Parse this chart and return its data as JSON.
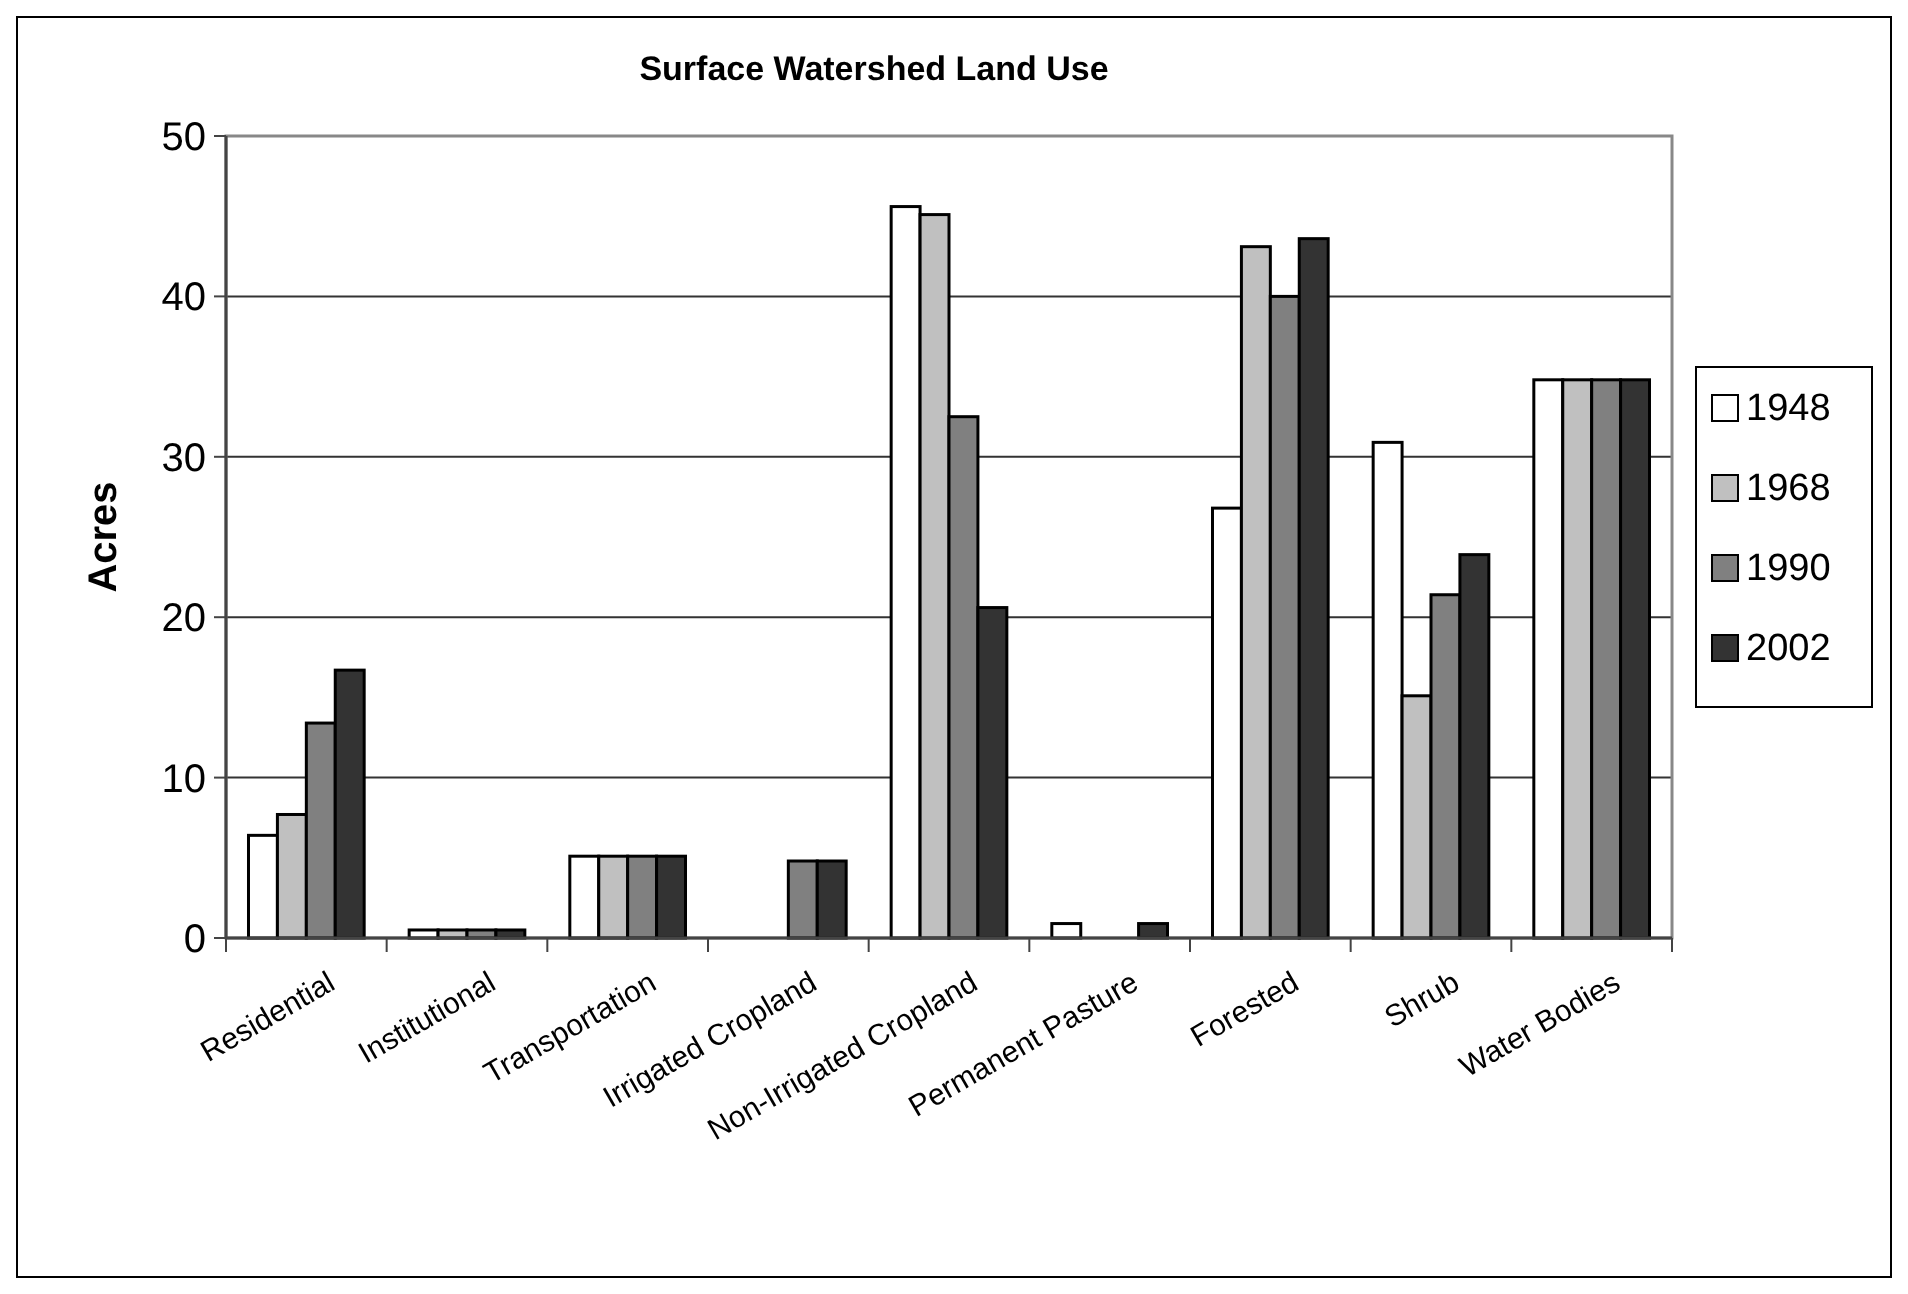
{
  "chart_data": {
    "type": "bar",
    "title": "Surface Watershed Land Use",
    "ylabel": "Acres",
    "categories": [
      "Residential",
      "Institutional",
      "Transportation",
      "Irrigated Cropland",
      "Non-Irrigated Cropland",
      "Permanent Pasture",
      "Forested",
      "Shrub",
      "Water Bodies"
    ],
    "series": [
      {
        "name": "1948",
        "color": "#ffffff",
        "values": [
          6.4,
          0.5,
          5.1,
          0,
          45.6,
          0.9,
          26.8,
          30.9,
          34.8
        ]
      },
      {
        "name": "1968",
        "color": "#c0c0c0",
        "values": [
          7.7,
          0.5,
          5.1,
          0,
          45.1,
          0,
          43.1,
          15.1,
          34.8
        ]
      },
      {
        "name": "1990",
        "color": "#808080",
        "values": [
          13.4,
          0.5,
          5.1,
          4.8,
          32.5,
          0,
          40,
          21.4,
          34.8
        ]
      },
      {
        "name": "2002",
        "color": "#333333",
        "values": [
          16.7,
          0.5,
          5.1,
          4.8,
          20.6,
          0.9,
          43.6,
          23.9,
          34.8
        ]
      }
    ],
    "ylim": [
      0,
      50
    ],
    "yticks": [
      0,
      10,
      20,
      30,
      40,
      50
    ],
    "grid": "y",
    "legend": "right"
  }
}
